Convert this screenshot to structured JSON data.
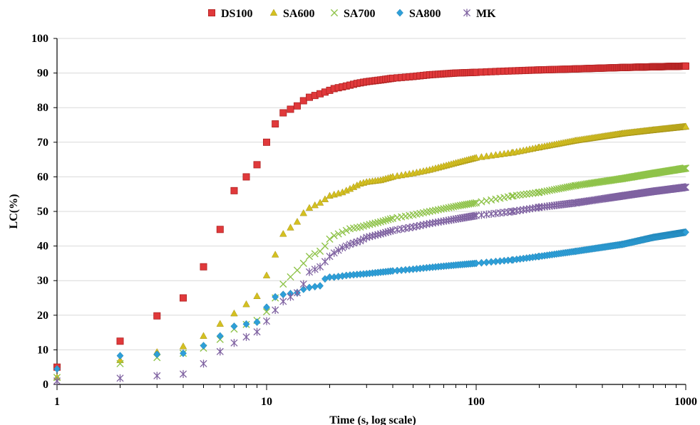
{
  "chart_data": {
    "type": "scatter",
    "title": "",
    "xlabel": "Time (s, log scale)",
    "ylabel": "LC(%)",
    "xscale": "log",
    "xlim": [
      1,
      1000
    ],
    "ylim": [
      0,
      100
    ],
    "x_ticks": [
      "1",
      "10",
      "100",
      "1000"
    ],
    "y_ticks": [
      "0",
      "10",
      "20",
      "30",
      "40",
      "50",
      "60",
      "70",
      "80",
      "90",
      "100"
    ],
    "grid": "horizontal",
    "legend_position": "top",
    "series": [
      {
        "name": "DS100",
        "marker": "square",
        "color": "#e0393b",
        "points": [
          [
            1,
            5
          ],
          [
            2,
            12.5
          ],
          [
            4,
            25
          ],
          [
            5,
            34
          ],
          [
            6,
            44.8
          ],
          [
            7,
            56
          ],
          [
            9,
            63.5
          ],
          [
            10,
            70
          ],
          [
            11,
            75.3
          ],
          [
            12,
            78.5
          ],
          [
            14,
            80.5
          ],
          [
            15,
            82
          ],
          [
            16,
            83
          ],
          [
            18,
            84
          ],
          [
            19,
            84.5
          ],
          [
            20,
            85
          ],
          [
            21,
            85.5
          ],
          [
            23,
            86
          ],
          [
            25,
            86.5
          ],
          [
            27,
            87
          ],
          [
            30,
            87.5
          ],
          [
            35,
            88
          ],
          [
            40,
            88.5
          ],
          [
            50,
            89
          ],
          [
            60,
            89.5
          ],
          [
            80,
            90
          ],
          [
            100,
            90.2
          ],
          [
            130,
            90.5
          ],
          [
            200,
            90.9
          ],
          [
            300,
            91.2
          ],
          [
            500,
            91.6
          ],
          [
            700,
            91.8
          ],
          [
            1000,
            92
          ]
        ]
      },
      {
        "name": "SA600",
        "marker": "triangle",
        "color": "#d4c021",
        "points": [
          [
            1,
            2
          ],
          [
            2,
            7
          ],
          [
            4,
            11
          ],
          [
            5,
            14
          ],
          [
            6,
            17.5
          ],
          [
            7,
            20.5
          ],
          [
            9,
            25.5
          ],
          [
            10,
            31.5
          ],
          [
            11,
            37.5
          ],
          [
            12,
            43.5
          ],
          [
            14,
            47
          ],
          [
            15,
            49.5
          ],
          [
            16,
            51
          ],
          [
            18,
            52.5
          ],
          [
            19,
            53.5
          ],
          [
            20,
            54.5
          ],
          [
            23,
            55.5
          ],
          [
            25,
            56.5
          ],
          [
            28,
            58
          ],
          [
            30,
            58.5
          ],
          [
            35,
            59
          ],
          [
            40,
            60
          ],
          [
            50,
            61
          ],
          [
            60,
            62
          ],
          [
            80,
            64
          ],
          [
            100,
            65.5
          ],
          [
            150,
            67
          ],
          [
            200,
            68.5
          ],
          [
            300,
            70.5
          ],
          [
            500,
            72.5
          ],
          [
            700,
            73.5
          ],
          [
            1000,
            74.5
          ]
        ]
      },
      {
        "name": "SA700",
        "marker": "x",
        "color": "#8fc34a",
        "points": [
          [
            1,
            2
          ],
          [
            2,
            6
          ],
          [
            4,
            9
          ],
          [
            5,
            10.5
          ],
          [
            6,
            13
          ],
          [
            7,
            16
          ],
          [
            9,
            18.5
          ],
          [
            10,
            21
          ],
          [
            11,
            25
          ],
          [
            12,
            29
          ],
          [
            14,
            33
          ],
          [
            15,
            35
          ],
          [
            16,
            37
          ],
          [
            18,
            38.5
          ],
          [
            19,
            40
          ],
          [
            20,
            42
          ],
          [
            21,
            43
          ],
          [
            23,
            44
          ],
          [
            25,
            45
          ],
          [
            28,
            45.5
          ],
          [
            30,
            46
          ],
          [
            35,
            47
          ],
          [
            40,
            48
          ],
          [
            50,
            49
          ],
          [
            60,
            50
          ],
          [
            80,
            51.5
          ],
          [
            100,
            52.5
          ],
          [
            150,
            54.5
          ],
          [
            200,
            55.5
          ],
          [
            300,
            57.5
          ],
          [
            500,
            59.5
          ],
          [
            700,
            61
          ],
          [
            1000,
            62.5
          ]
        ]
      },
      {
        "name": "SA800",
        "marker": "diamond",
        "color": "#2e9fd8",
        "points": [
          [
            1,
            4.5
          ],
          [
            2,
            8.3
          ],
          [
            4,
            9
          ],
          [
            5,
            11.2
          ],
          [
            6,
            14
          ],
          [
            7,
            16.8
          ],
          [
            9,
            18
          ],
          [
            10,
            22.3
          ],
          [
            11,
            25.3
          ],
          [
            12,
            26
          ],
          [
            14,
            26.5
          ],
          [
            15,
            27.5
          ],
          [
            16,
            28
          ],
          [
            18,
            28.5
          ],
          [
            19,
            30.5
          ],
          [
            20,
            31
          ],
          [
            21,
            31
          ],
          [
            24,
            31.5
          ],
          [
            26,
            31.7
          ],
          [
            30,
            32
          ],
          [
            40,
            32.8
          ],
          [
            50,
            33.3
          ],
          [
            60,
            33.8
          ],
          [
            80,
            34.5
          ],
          [
            100,
            35
          ],
          [
            150,
            36
          ],
          [
            200,
            37
          ],
          [
            300,
            38.5
          ],
          [
            500,
            40.5
          ],
          [
            700,
            42.5
          ],
          [
            1000,
            44
          ]
        ]
      },
      {
        "name": "MK",
        "marker": "star",
        "color": "#7f62a1",
        "points": [
          [
            1,
            1
          ],
          [
            2,
            1.8
          ],
          [
            4,
            3
          ],
          [
            5,
            6
          ],
          [
            6,
            9.5
          ],
          [
            7,
            12
          ],
          [
            9,
            15.2
          ],
          [
            10,
            18.3
          ],
          [
            11,
            21.5
          ],
          [
            12,
            24
          ],
          [
            14,
            26.5
          ],
          [
            15,
            29
          ],
          [
            16,
            32.5
          ],
          [
            18,
            34
          ],
          [
            19,
            35.5
          ],
          [
            20,
            37
          ],
          [
            21,
            38
          ],
          [
            23,
            39.5
          ],
          [
            25,
            40.5
          ],
          [
            28,
            41.5
          ],
          [
            30,
            42.5
          ],
          [
            35,
            43.5
          ],
          [
            40,
            44.5
          ],
          [
            50,
            45.5
          ],
          [
            60,
            46.5
          ],
          [
            80,
            47.8
          ],
          [
            100,
            48.8
          ],
          [
            150,
            50
          ],
          [
            200,
            51.2
          ],
          [
            300,
            52.5
          ],
          [
            500,
            54.5
          ],
          [
            700,
            55.8
          ],
          [
            1000,
            57
          ]
        ]
      }
    ]
  }
}
